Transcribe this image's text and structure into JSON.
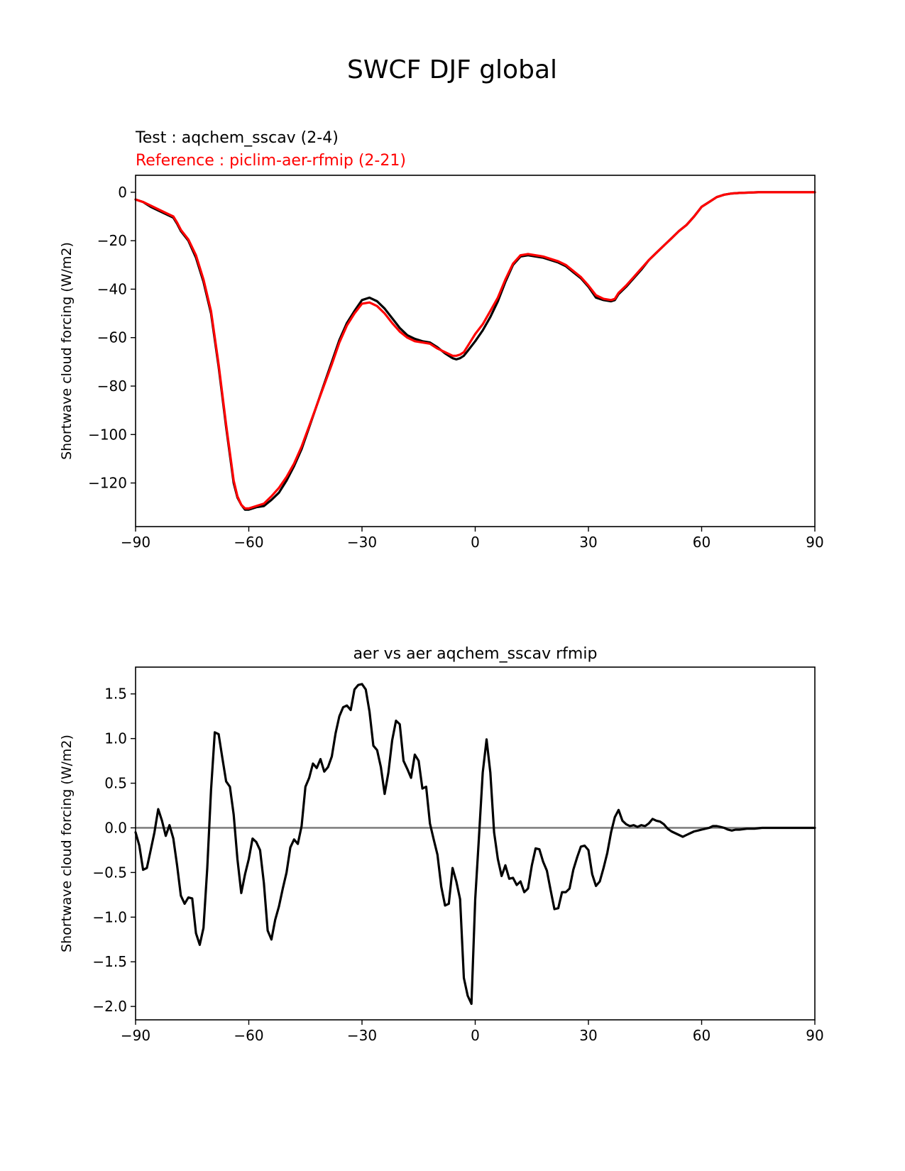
{
  "figure": {
    "title": "SWCF DJF global"
  },
  "chart_data": [
    {
      "type": "line",
      "test_label": "Test : aqchem_sscav (2-4)",
      "reference_label": "Reference : piclim-aer-rfmip (2-21)",
      "title": "",
      "xlabel": "",
      "ylabel": "Shortwave cloud forcing (W/m2)",
      "xlim": [
        -90,
        90
      ],
      "ylim": [
        -138,
        7
      ],
      "xticks": [
        -90,
        -60,
        -30,
        0,
        30,
        60,
        90
      ],
      "xtick_labels": [
        "−90",
        "−60",
        "−30",
        "0",
        "30",
        "60",
        "90"
      ],
      "yticks": [
        0,
        -20,
        -40,
        -60,
        -80,
        -100,
        -120
      ],
      "ytick_labels": [
        "0",
        "−20",
        "−40",
        "−60",
        "−80",
        "−100",
        "−120"
      ],
      "grid": false,
      "colors": {
        "test": "#000000",
        "reference": "#ff0000"
      },
      "series": [
        {
          "role": "test",
          "x": [
            -90,
            -88,
            -86,
            -84,
            -82,
            -80,
            -79,
            -78,
            -76,
            -74,
            -72,
            -70,
            -68,
            -66,
            -64,
            -63,
            -62,
            -61,
            -60,
            -58,
            -56,
            -54,
            -52,
            -50,
            -48,
            -46,
            -44,
            -42,
            -40,
            -38,
            -36,
            -34,
            -32,
            -30,
            -28,
            -26,
            -24,
            -22,
            -20,
            -18,
            -16,
            -14,
            -12,
            -10,
            -8,
            -6,
            -5,
            -4,
            -3,
            -2,
            0,
            2,
            4,
            6,
            8,
            10,
            12,
            14,
            16,
            18,
            20,
            22,
            24,
            26,
            28,
            30,
            32,
            34,
            36,
            37,
            38,
            40,
            42,
            44,
            46,
            48,
            50,
            52,
            54,
            56,
            58,
            60,
            62,
            64,
            66,
            68,
            70,
            75,
            80,
            85,
            90
          ],
          "y": [
            -3,
            -4,
            -6,
            -7.5,
            -9,
            -10.5,
            -13,
            -16,
            -20,
            -27,
            -37,
            -50,
            -72,
            -97,
            -120,
            -126,
            -129,
            -131,
            -131,
            -130,
            -129.5,
            -127,
            -124,
            -119,
            -113,
            -106,
            -97,
            -88,
            -79,
            -70,
            -61,
            -54,
            -49,
            -44.5,
            -43.5,
            -45,
            -48,
            -52,
            -56,
            -59,
            -60.5,
            -61.5,
            -62,
            -64,
            -66.5,
            -68.5,
            -69,
            -68.5,
            -67.5,
            -65.5,
            -61.5,
            -57,
            -51.5,
            -45,
            -37,
            -30,
            -26.5,
            -26,
            -26.5,
            -27,
            -28,
            -29,
            -30.5,
            -33,
            -35.5,
            -39,
            -43.5,
            -44.5,
            -45,
            -44.5,
            -42,
            -39,
            -35.5,
            -32,
            -28,
            -25,
            -22,
            -19,
            -16,
            -13.5,
            -10,
            -6,
            -4,
            -2,
            -1,
            -0.5,
            -0.3,
            0,
            0,
            0,
            0
          ]
        },
        {
          "role": "reference",
          "x": [
            -90,
            -88,
            -86,
            -84,
            -82,
            -80,
            -79,
            -78,
            -76,
            -74,
            -72,
            -70,
            -68,
            -66,
            -64,
            -63,
            -62,
            -61,
            -60,
            -58,
            -56,
            -54,
            -52,
            -50,
            -48,
            -46,
            -44,
            -42,
            -40,
            -38,
            -36,
            -34,
            -32,
            -30,
            -28,
            -26,
            -24,
            -22,
            -20,
            -18,
            -16,
            -14,
            -12,
            -10,
            -8,
            -6,
            -5,
            -4,
            -3,
            -2,
            0,
            2,
            4,
            6,
            8,
            10,
            12,
            14,
            16,
            18,
            20,
            22,
            24,
            26,
            28,
            30,
            32,
            34,
            36,
            37,
            38,
            40,
            42,
            44,
            46,
            48,
            50,
            52,
            54,
            56,
            58,
            60,
            62,
            64,
            66,
            68,
            70,
            75,
            80,
            85,
            90
          ],
          "y": [
            -3,
            -4,
            -5.5,
            -7,
            -8.5,
            -10,
            -12.5,
            -15.5,
            -19.5,
            -26,
            -36,
            -49,
            -71,
            -96,
            -119,
            -125.5,
            -129,
            -130.5,
            -130.5,
            -129.5,
            -128.5,
            -125.5,
            -122,
            -117.5,
            -112,
            -105,
            -96.5,
            -88,
            -79.5,
            -71,
            -62,
            -55,
            -50,
            -46,
            -45.5,
            -47,
            -50,
            -54,
            -57.5,
            -60,
            -61.5,
            -62,
            -62.5,
            -64.5,
            -66,
            -67.5,
            -67.5,
            -67,
            -66,
            -63.5,
            -58.5,
            -54.5,
            -49,
            -43.5,
            -36,
            -29.5,
            -26,
            -25.5,
            -26,
            -26.5,
            -27.5,
            -28.5,
            -30,
            -32.5,
            -35,
            -38.5,
            -42.5,
            -44,
            -44.5,
            -44,
            -41.5,
            -38.5,
            -35,
            -31.5,
            -28,
            -25,
            -22,
            -19,
            -16,
            -13.5,
            -10,
            -6,
            -4,
            -2,
            -1,
            -0.5,
            -0.3,
            0,
            0,
            0,
            0
          ]
        }
      ]
    },
    {
      "type": "line",
      "title": "aer vs aer aqchem_sscav rfmip",
      "xlabel": "",
      "ylabel": "Shortwave cloud forcing (W/m2)",
      "xlim": [
        -90,
        90
      ],
      "ylim": [
        -2.15,
        1.8
      ],
      "xticks": [
        -90,
        -60,
        -30,
        0,
        30,
        60,
        90
      ],
      "xtick_labels": [
        "−90",
        "−60",
        "−30",
        "0",
        "30",
        "60",
        "90"
      ],
      "yticks": [
        1.5,
        1.0,
        0.5,
        0.0,
        -0.5,
        -1.0,
        -1.5,
        -2.0
      ],
      "ytick_labels": [
        "1.5",
        "1.0",
        "0.5",
        "0.0",
        "−0.5",
        "−1.0",
        "−1.5",
        "−2.0"
      ],
      "grid": false,
      "zero_line": 0,
      "colors": {
        "difference": "#000000",
        "zero_line": "#808080"
      },
      "series": [
        {
          "role": "difference",
          "x": [
            -90,
            -89,
            -88,
            -87,
            -86,
            -85,
            -84,
            -83,
            -82,
            -81,
            -80,
            -79,
            -78,
            -77,
            -76,
            -75,
            -74,
            -73,
            -72,
            -71,
            -70,
            -69,
            -68,
            -67,
            -66,
            -65,
            -64,
            -63,
            -62,
            -61,
            -60,
            -59,
            -58,
            -57,
            -56,
            -55,
            -54,
            -53,
            -52,
            -51,
            -50,
            -49,
            -48,
            -47,
            -46,
            -45,
            -44,
            -43,
            -42,
            -41,
            -40,
            -39,
            -38,
            -37,
            -36,
            -35,
            -34,
            -33,
            -32,
            -31,
            -30,
            -29,
            -28,
            -27,
            -26,
            -25,
            -24,
            -23,
            -22,
            -21,
            -20,
            -19,
            -18,
            -17,
            -16,
            -15,
            -14,
            -13,
            -12,
            -11,
            -10,
            -9,
            -8,
            -7,
            -6,
            -5,
            -4,
            -3,
            -2,
            -1,
            0,
            1,
            2,
            3,
            4,
            5,
            6,
            7,
            8,
            9,
            10,
            11,
            12,
            13,
            14,
            15,
            16,
            17,
            18,
            19,
            20,
            21,
            22,
            23,
            24,
            25,
            26,
            27,
            28,
            29,
            30,
            31,
            32,
            33,
            34,
            35,
            36,
            37,
            38,
            39,
            40,
            41,
            42,
            43,
            44,
            45,
            46,
            47,
            48,
            49,
            50,
            51,
            52,
            53,
            54,
            55,
            56,
            57,
            58,
            59,
            60,
            61,
            62,
            63,
            64,
            65,
            66,
            67,
            68,
            69,
            70,
            72,
            74,
            76,
            78,
            80,
            85,
            90
          ],
          "y": [
            -0.05,
            -0.2,
            -0.47,
            -0.45,
            -0.25,
            -0.05,
            0.21,
            0.08,
            -0.09,
            0.03,
            -0.12,
            -0.42,
            -0.76,
            -0.85,
            -0.78,
            -0.79,
            -1.18,
            -1.31,
            -1.12,
            -0.45,
            0.42,
            1.07,
            1.05,
            0.78,
            0.52,
            0.46,
            0.15,
            -0.35,
            -0.73,
            -0.52,
            -0.35,
            -0.12,
            -0.16,
            -0.25,
            -0.62,
            -1.15,
            -1.25,
            -1.03,
            -0.88,
            -0.68,
            -0.5,
            -0.22,
            -0.13,
            -0.18,
            0.02,
            0.46,
            0.56,
            0.72,
            0.67,
            0.77,
            0.63,
            0.68,
            0.8,
            1.06,
            1.25,
            1.35,
            1.37,
            1.32,
            1.55,
            1.6,
            1.61,
            1.55,
            1.3,
            0.92,
            0.87,
            0.68,
            0.38,
            0.62,
            0.98,
            1.2,
            1.16,
            0.75,
            0.66,
            0.56,
            0.82,
            0.75,
            0.44,
            0.46,
            0.05,
            -0.13,
            -0.3,
            -0.66,
            -0.87,
            -0.85,
            -0.45,
            -0.6,
            -0.8,
            -1.68,
            -1.88,
            -1.97,
            -0.8,
            -0.1,
            0.62,
            0.99,
            0.62,
            -0.05,
            -0.35,
            -0.54,
            -0.42,
            -0.57,
            -0.56,
            -0.64,
            -0.6,
            -0.72,
            -0.68,
            -0.42,
            -0.23,
            -0.24,
            -0.38,
            -0.48,
            -0.7,
            -0.91,
            -0.9,
            -0.72,
            -0.72,
            -0.68,
            -0.47,
            -0.33,
            -0.21,
            -0.2,
            -0.25,
            -0.52,
            -0.65,
            -0.6,
            -0.45,
            -0.28,
            -0.05,
            0.12,
            0.2,
            0.08,
            0.04,
            0.02,
            0.03,
            0.01,
            0.03,
            0.02,
            0.05,
            0.1,
            0.08,
            0.07,
            0.04,
            -0.01,
            -0.04,
            -0.06,
            -0.08,
            -0.1,
            -0.08,
            -0.06,
            -0.04,
            -0.03,
            -0.02,
            -0.01,
            0.0,
            0.02,
            0.02,
            0.01,
            0.0,
            -0.02,
            -0.03,
            -0.02,
            -0.02,
            -0.01,
            -0.01,
            0.0,
            0.0,
            0.0,
            0.0,
            0.0
          ]
        }
      ]
    }
  ]
}
